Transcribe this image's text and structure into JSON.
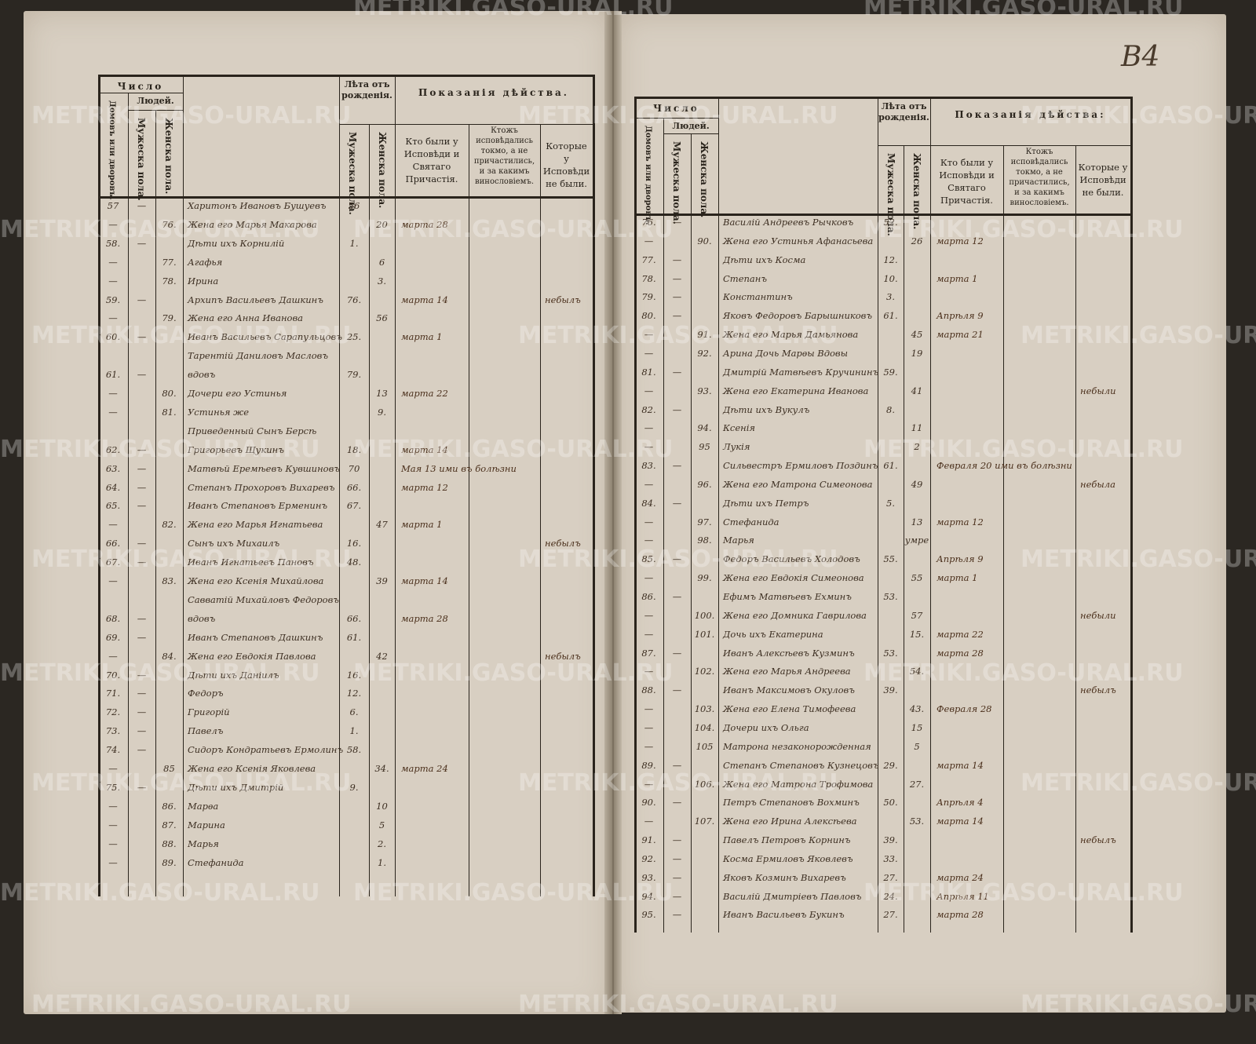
{
  "folio": "В4",
  "watermark": "METRIKI.GASO-URAL.RU",
  "header": {
    "chislo": "Число",
    "lyudei": "Людей.",
    "domov": "Домовъ или дворовъ.",
    "muzh": "Мужеска пола.",
    "zhen": "Женска пола.",
    "leta": "Лѣта отъ рожденія.",
    "pokazaniya_left": "Показанія дѣйства.",
    "pokazaniya_right": "Показанія дѣйства:",
    "col_confessed": "Кто были у Исповѣди и Святаго Причастія.",
    "col_not_communed": "Ктожъ исповѣдались токмо, а не причастились, и за какимъ винословіемъ.",
    "col_absent": "Которые у Исповѣди не были."
  },
  "left_rows": [
    {
      "house": "57",
      "m": "—",
      "f": "",
      "name": "Харитонъ Ивановъ Бушуевъ",
      "age_m": "56",
      "age_f": "",
      "confessed": "",
      "absent": ""
    },
    {
      "house": "—",
      "m": "",
      "f": "76.",
      "name": "Жена его Марья Макарова",
      "age_m": "",
      "age_f": "20",
      "confessed": "марта 28",
      "absent": ""
    },
    {
      "house": "58.",
      "m": "—",
      "f": "",
      "name": "Дѣти ихъ Корнилій",
      "age_m": "1.",
      "age_f": "",
      "confessed": "",
      "absent": ""
    },
    {
      "house": "—",
      "m": "",
      "f": "77.",
      "name": "Агафья",
      "age_m": "",
      "age_f": "6",
      "confessed": "",
      "absent": ""
    },
    {
      "house": "—",
      "m": "",
      "f": "78.",
      "name": "Ирина",
      "age_m": "",
      "age_f": "3.",
      "confessed": "",
      "absent": ""
    },
    {
      "house": "59.",
      "m": "—",
      "f": "",
      "name": "Архипъ Васильевъ Дашкинъ",
      "age_m": "76.",
      "age_f": "",
      "confessed": "марта 14",
      "absent": "небылъ"
    },
    {
      "house": "—",
      "m": "",
      "f": "79.",
      "name": "Жена его Анна Иванова",
      "age_m": "",
      "age_f": "56",
      "confessed": "",
      "absent": ""
    },
    {
      "house": "60.",
      "m": "—",
      "f": "",
      "name": "Иванъ Васильевъ Сарапульцовъ",
      "age_m": "25.",
      "age_f": "",
      "confessed": "марта 1",
      "absent": ""
    },
    {
      "house": "",
      "m": "",
      "f": "",
      "name": "Тарентій Даниловъ Масловъ",
      "age_m": "",
      "age_f": "",
      "confessed": "",
      "absent": ""
    },
    {
      "house": "61.",
      "m": "—",
      "f": "",
      "name": "вдовъ",
      "age_m": "79.",
      "age_f": "",
      "confessed": "",
      "absent": ""
    },
    {
      "house": "—",
      "m": "",
      "f": "80.",
      "name": "Дочери его Устинья",
      "age_m": "",
      "age_f": "13",
      "confessed": "марта 22",
      "absent": ""
    },
    {
      "house": "—",
      "m": "",
      "f": "81.",
      "name": "Устинья же",
      "age_m": "",
      "age_f": "9.",
      "confessed": "",
      "absent": ""
    },
    {
      "house": "",
      "m": "",
      "f": "",
      "name": "Приведенный Сынъ Берсѣ",
      "age_m": "",
      "age_f": "",
      "confessed": "",
      "absent": ""
    },
    {
      "house": "62.",
      "m": "—",
      "f": "",
      "name": "Григорьевъ Щукинъ",
      "age_m": "18.",
      "age_f": "",
      "confessed": "марта 14",
      "absent": ""
    },
    {
      "house": "63.",
      "m": "—",
      "f": "",
      "name": "Матвѣй Еремѣевъ Кувшиновъ",
      "age_m": "70",
      "age_f": "",
      "confessed": "Мая 13 ими въ болѣзни",
      "absent": ""
    },
    {
      "house": "64.",
      "m": "—",
      "f": "",
      "name": "Степанъ Прохоровъ Вихаревъ",
      "age_m": "66.",
      "age_f": "",
      "confessed": "марта 12",
      "absent": ""
    },
    {
      "house": "65.",
      "m": "—",
      "f": "",
      "name": "Иванъ Степановъ Ерменинъ",
      "age_m": "67.",
      "age_f": "",
      "confessed": "",
      "absent": ""
    },
    {
      "house": "—",
      "m": "",
      "f": "82.",
      "name": "Жена его Марья Игнатьева",
      "age_m": "",
      "age_f": "47",
      "confessed": "марта 1",
      "absent": ""
    },
    {
      "house": "66.",
      "m": "—",
      "f": "",
      "name": "Сынъ ихъ Михаилъ",
      "age_m": "16.",
      "age_f": "",
      "confessed": "",
      "absent": "небылъ"
    },
    {
      "house": "67.",
      "m": "—",
      "f": "",
      "name": "Иванъ Игнатьевъ Пановъ",
      "age_m": "48.",
      "age_f": "",
      "confessed": "",
      "absent": ""
    },
    {
      "house": "—",
      "m": "",
      "f": "83.",
      "name": "Жена его Ксенія Михайлова",
      "age_m": "",
      "age_f": "39",
      "confessed": "марта 14",
      "absent": ""
    },
    {
      "house": "",
      "m": "",
      "f": "",
      "name": "Савватій Михайловъ Федоровъ",
      "age_m": "",
      "age_f": "",
      "confessed": "",
      "absent": ""
    },
    {
      "house": "68.",
      "m": "—",
      "f": "",
      "name": "вдовъ",
      "age_m": "66.",
      "age_f": "",
      "confessed": "марта 28",
      "absent": ""
    },
    {
      "house": "69.",
      "m": "—",
      "f": "",
      "name": "Иванъ Степановъ Дашкинъ",
      "age_m": "61.",
      "age_f": "",
      "confessed": "",
      "absent": ""
    },
    {
      "house": "—",
      "m": "",
      "f": "84.",
      "name": "Жена его Евдокія Павлова",
      "age_m": "",
      "age_f": "42",
      "confessed": "",
      "absent": "небылъ"
    },
    {
      "house": "70.",
      "m": "—",
      "f": "",
      "name": "Дѣти ихъ Даніилъ",
      "age_m": "16.",
      "age_f": "",
      "confessed": "",
      "absent": ""
    },
    {
      "house": "71.",
      "m": "—",
      "f": "",
      "name": "Федоръ",
      "age_m": "12.",
      "age_f": "",
      "confessed": "",
      "absent": ""
    },
    {
      "house": "72.",
      "m": "—",
      "f": "",
      "name": "Григорій",
      "age_m": "6.",
      "age_f": "",
      "confessed": "",
      "absent": ""
    },
    {
      "house": "73.",
      "m": "—",
      "f": "",
      "name": "Павелъ",
      "age_m": "1.",
      "age_f": "",
      "confessed": "",
      "absent": ""
    },
    {
      "house": "74.",
      "m": "—",
      "f": "",
      "name": "Сидоръ Кондратьевъ Ермолинъ",
      "age_m": "58.",
      "age_f": "",
      "confessed": "",
      "absent": ""
    },
    {
      "house": "—",
      "m": "",
      "f": "85",
      "name": "Жена его Ксенія Яковлева",
      "age_m": "",
      "age_f": "34.",
      "confessed": "марта 24",
      "absent": ""
    },
    {
      "house": "75.",
      "m": "—",
      "f": "",
      "name": "Дѣти ихъ Дмитрій",
      "age_m": "9.",
      "age_f": "",
      "confessed": "",
      "absent": ""
    },
    {
      "house": "—",
      "m": "",
      "f": "86.",
      "name": "Марѳа",
      "age_m": "",
      "age_f": "10",
      "confessed": "",
      "absent": ""
    },
    {
      "house": "—",
      "m": "",
      "f": "87.",
      "name": "Марина",
      "age_m": "",
      "age_f": "5",
      "confessed": "",
      "absent": ""
    },
    {
      "house": "—",
      "m": "",
      "f": "88.",
      "name": "Марья",
      "age_m": "",
      "age_f": "2.",
      "confessed": "",
      "absent": ""
    },
    {
      "house": "—",
      "m": "",
      "f": "89.",
      "name": "Стефанида",
      "age_m": "",
      "age_f": "1.",
      "confessed": "",
      "absent": ""
    }
  ],
  "right_rows": [
    {
      "house": "76.",
      "m": "—",
      "f": "",
      "name": "Василій Андреевъ Рычковъ",
      "age_m": "52.",
      "age_f": "",
      "confessed": "",
      "absent": ""
    },
    {
      "house": "—",
      "m": "",
      "f": "90.",
      "name": "Жена его Устинья Афанасьева",
      "age_m": "",
      "age_f": "26",
      "confessed": "марта 12",
      "absent": ""
    },
    {
      "house": "77.",
      "m": "—",
      "f": "",
      "name": "Дѣти ихъ Косма",
      "age_m": "12.",
      "age_f": "",
      "confessed": "",
      "absent": ""
    },
    {
      "house": "78.",
      "m": "—",
      "f": "",
      "name": "Степанъ",
      "age_m": "10.",
      "age_f": "",
      "confessed": "марта 1",
      "absent": ""
    },
    {
      "house": "79.",
      "m": "—",
      "f": "",
      "name": "Константинъ",
      "age_m": "3.",
      "age_f": "",
      "confessed": "",
      "absent": ""
    },
    {
      "house": "80.",
      "m": "—",
      "f": "",
      "name": "Яковъ Федоровъ Барышниковъ",
      "age_m": "61.",
      "age_f": "",
      "confessed": "Апрѣля 9",
      "absent": ""
    },
    {
      "house": "—",
      "m": "",
      "f": "91.",
      "name": "Жена его Марья Дамьянова",
      "age_m": "",
      "age_f": "45",
      "confessed": "марта 21",
      "absent": ""
    },
    {
      "house": "—",
      "m": "",
      "f": "92.",
      "name": "Арина Дочь Марѳы Вдовы",
      "age_m": "",
      "age_f": "19",
      "confessed": "",
      "absent": ""
    },
    {
      "house": "81.",
      "m": "—",
      "f": "",
      "name": "Дмитрій Матвѣевъ Кручининъ",
      "age_m": "59.",
      "age_f": "",
      "confessed": "",
      "absent": ""
    },
    {
      "house": "—",
      "m": "",
      "f": "93.",
      "name": "Жена его Екатерина Иванова",
      "age_m": "",
      "age_f": "41",
      "confessed": "",
      "absent": "небыли"
    },
    {
      "house": "82.",
      "m": "—",
      "f": "",
      "name": "Дѣти ихъ Вукулъ",
      "age_m": "8.",
      "age_f": "",
      "confessed": "",
      "absent": ""
    },
    {
      "house": "—",
      "m": "",
      "f": "94.",
      "name": "Ксенія",
      "age_m": "",
      "age_f": "11",
      "confessed": "",
      "absent": ""
    },
    {
      "house": "—",
      "m": "",
      "f": "95",
      "name": "Лукія",
      "age_m": "",
      "age_f": "2",
      "confessed": "",
      "absent": ""
    },
    {
      "house": "83.",
      "m": "—",
      "f": "",
      "name": "Сильвестръ Ермиловъ Поздинъ",
      "age_m": "61.",
      "age_f": "",
      "confessed": "Февраля 20 ими въ болѣзни",
      "absent": ""
    },
    {
      "house": "—",
      "m": "",
      "f": "96.",
      "name": "Жена его Матрона Симеонова",
      "age_m": "",
      "age_f": "49",
      "confessed": "",
      "absent": "небыла"
    },
    {
      "house": "84.",
      "m": "—",
      "f": "",
      "name": "Дѣти ихъ Петръ",
      "age_m": "5.",
      "age_f": "",
      "confessed": "",
      "absent": ""
    },
    {
      "house": "—",
      "m": "",
      "f": "97.",
      "name": "Стефанида",
      "age_m": "",
      "age_f": "13",
      "confessed": "марта 12",
      "absent": ""
    },
    {
      "house": "—",
      "m": "",
      "f": "98.",
      "name": "Марья",
      "age_m": "",
      "age_f": "умре",
      "confessed": "",
      "absent": ""
    },
    {
      "house": "85.",
      "m": "—",
      "f": "",
      "name": "Федоръ Васильевъ Холодовъ",
      "age_m": "55.",
      "age_f": "",
      "confessed": "Апрѣля 9",
      "absent": ""
    },
    {
      "house": "—",
      "m": "",
      "f": "99.",
      "name": "Жена его Евдокія Симеонова",
      "age_m": "",
      "age_f": "55",
      "confessed": "марта 1",
      "absent": ""
    },
    {
      "house": "86.",
      "m": "—",
      "f": "",
      "name": "Ефимъ Матвѣевъ Ехминъ",
      "age_m": "53.",
      "age_f": "",
      "confessed": "",
      "absent": ""
    },
    {
      "house": "—",
      "m": "",
      "f": "100.",
      "name": "Жена его Домника Гаврилова",
      "age_m": "",
      "age_f": "57",
      "confessed": "",
      "absent": "небыли"
    },
    {
      "house": "—",
      "m": "",
      "f": "101.",
      "name": "Дочь ихъ Екатерина",
      "age_m": "",
      "age_f": "15.",
      "confessed": "марта 22",
      "absent": ""
    },
    {
      "house": "87.",
      "m": "—",
      "f": "",
      "name": "Иванъ Алексѣевъ Кузминъ",
      "age_m": "53.",
      "age_f": "",
      "confessed": "марта 28",
      "absent": ""
    },
    {
      "house": "—",
      "m": "",
      "f": "102.",
      "name": "Жена его Марья Андреева",
      "age_m": "",
      "age_f": "54.",
      "confessed": "",
      "absent": ""
    },
    {
      "house": "88.",
      "m": "—",
      "f": "",
      "name": "Иванъ Максимовъ Окуловъ",
      "age_m": "39.",
      "age_f": "",
      "confessed": "",
      "absent": "небылъ"
    },
    {
      "house": "—",
      "m": "",
      "f": "103.",
      "name": "Жена его Елена Тимофеева",
      "age_m": "",
      "age_f": "43.",
      "confessed": "Февраля 28",
      "absent": ""
    },
    {
      "house": "—",
      "m": "",
      "f": "104.",
      "name": "Дочери ихъ Ольга",
      "age_m": "",
      "age_f": "15",
      "confessed": "",
      "absent": ""
    },
    {
      "house": "—",
      "m": "",
      "f": "105",
      "name": "Матрона незаконорожденная",
      "age_m": "",
      "age_f": "5",
      "confessed": "",
      "absent": ""
    },
    {
      "house": "89.",
      "m": "—",
      "f": "",
      "name": "Степанъ Степановъ Кузнецовъ",
      "age_m": "29.",
      "age_f": "",
      "confessed": "марта 14",
      "absent": ""
    },
    {
      "house": "—",
      "m": "",
      "f": "106.",
      "name": "Жена его Матрона Трофимова",
      "age_m": "",
      "age_f": "27.",
      "confessed": "",
      "absent": ""
    },
    {
      "house": "90.",
      "m": "—",
      "f": "",
      "name": "Петръ Степановъ Вохминъ",
      "age_m": "50.",
      "age_f": "",
      "confessed": "Апрѣля 4",
      "absent": ""
    },
    {
      "house": "—",
      "m": "",
      "f": "107.",
      "name": "Жена его Ирина Алексѣева",
      "age_m": "",
      "age_f": "53.",
      "confessed": "марта 14",
      "absent": ""
    },
    {
      "house": "91.",
      "m": "—",
      "f": "",
      "name": "Павелъ Петровъ Корнинъ",
      "age_m": "39.",
      "age_f": "",
      "confessed": "",
      "absent": "небылъ"
    },
    {
      "house": "92.",
      "m": "—",
      "f": "",
      "name": "Косма Ермиловъ Яковлевъ",
      "age_m": "33.",
      "age_f": "",
      "confessed": "",
      "absent": ""
    },
    {
      "house": "93.",
      "m": "—",
      "f": "",
      "name": "Яковъ Козминъ Вихаревъ",
      "age_m": "27.",
      "age_f": "",
      "confessed": "марта 24",
      "absent": ""
    },
    {
      "house": "94.",
      "m": "—",
      "f": "",
      "name": "Василій Дмитріевъ Павловъ",
      "age_m": "24.",
      "age_f": "",
      "confessed": "Апрѣля 11",
      "absent": ""
    },
    {
      "house": "95.",
      "m": "—",
      "f": "",
      "name": "Иванъ Васильевъ Букинъ",
      "age_m": "27.",
      "age_f": "",
      "confessed": "марта 28",
      "absent": ""
    }
  ]
}
